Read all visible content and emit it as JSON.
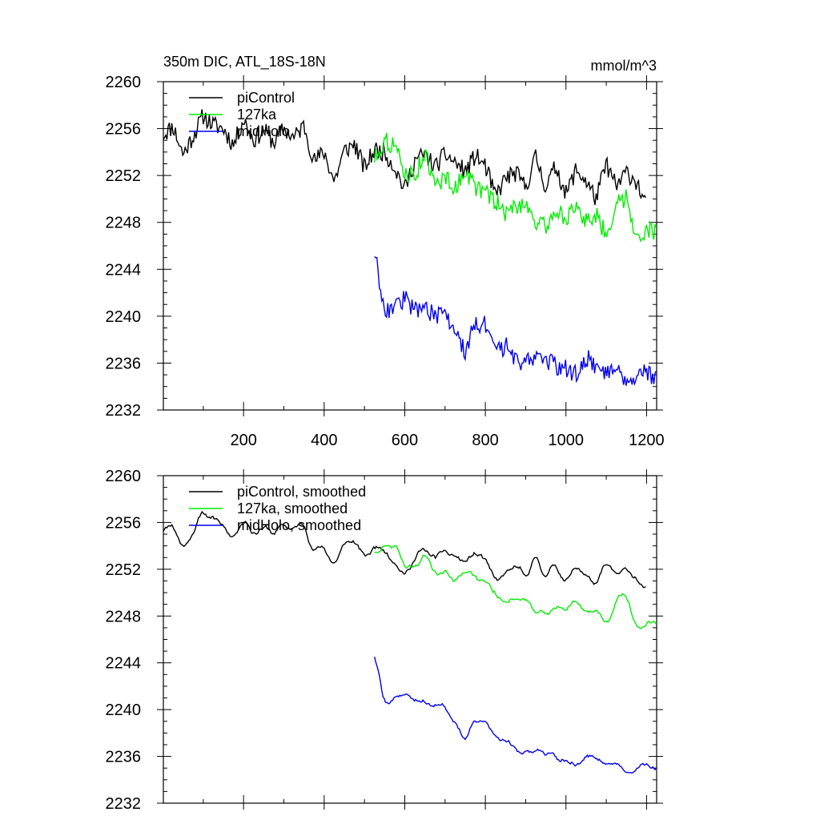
{
  "chart_data": [
    {
      "type": "line",
      "title": "350m DIC, ATL_18S-18N",
      "units": "mmol/m^3",
      "xlim": [
        1,
        1225
      ],
      "ylim": [
        2232,
        2260
      ],
      "x_ticks": [
        200,
        400,
        600,
        800,
        1000,
        1200
      ],
      "x_tick_labels": [
        "200",
        "400",
        "600",
        "800",
        "1000",
        "1200"
      ],
      "y_ticks": [
        2232,
        2236,
        2240,
        2244,
        2248,
        2252,
        2256,
        2260
      ],
      "y_tick_labels": [
        "2232",
        "2236",
        "2240",
        "2244",
        "2248",
        "2252",
        "2256",
        "2260"
      ],
      "legend_position": "top-left",
      "series": [
        {
          "name": "piControl",
          "color": "#000000",
          "x": [
            1,
            25,
            50,
            75,
            100,
            125,
            150,
            175,
            200,
            225,
            250,
            275,
            300,
            325,
            350,
            375,
            400,
            425,
            450,
            475,
            500,
            525,
            550,
            575,
            600,
            625,
            650,
            675,
            700,
            725,
            750,
            775,
            800,
            825,
            850,
            875,
            900,
            925,
            950,
            975,
            1000,
            1025,
            1050,
            1075,
            1100,
            1125,
            1150,
            1175,
            1200
          ],
          "y": [
            2255.5,
            2256.2,
            2253.8,
            2255.4,
            2257.1,
            2256.3,
            2256.0,
            2254.6,
            2256.8,
            2255.0,
            2255.9,
            2254.8,
            2256.0,
            2255.2,
            2256.3,
            2253.2,
            2254.0,
            2251.5,
            2254.1,
            2254.7,
            2252.6,
            2254.2,
            2254.0,
            2252.7,
            2250.8,
            2253.3,
            2253.8,
            2252.7,
            2253.8,
            2253.1,
            2252.3,
            2253.7,
            2252.8,
            2250.2,
            2251.8,
            2252.2,
            2251.0,
            2253.6,
            2251.0,
            2252.8,
            2250.4,
            2252.5,
            2251.5,
            2250.0,
            2253.0,
            2251.0,
            2252.3,
            2251.5,
            2249.2
          ]
        },
        {
          "name": "127ka",
          "color": "#00ee00",
          "x": [
            525,
            550,
            575,
            600,
            625,
            650,
            675,
            700,
            725,
            750,
            775,
            800,
            825,
            850,
            875,
            900,
            925,
            950,
            975,
            1000,
            1025,
            1050,
            1075,
            1100,
            1125,
            1150,
            1175,
            1200,
            1225
          ],
          "y": [
            2253.5,
            2255.0,
            2254.5,
            2252.2,
            2252.0,
            2254.0,
            2251.0,
            2252.0,
            2250.8,
            2252.5,
            2251.0,
            2250.5,
            2249.8,
            2248.8,
            2249.3,
            2249.8,
            2248.0,
            2247.6,
            2249.0,
            2248.5,
            2249.0,
            2248.2,
            2248.6,
            2247.0,
            2249.5,
            2250.2,
            2246.8,
            2247.3,
            2247.2
          ]
        },
        {
          "name": "midHolo",
          "color": "#0000ee",
          "x": [
            525,
            535,
            545,
            555,
            575,
            600,
            625,
            650,
            675,
            700,
            725,
            750,
            775,
            800,
            825,
            850,
            875,
            900,
            925,
            950,
            975,
            1000,
            1025,
            1050,
            1075,
            1100,
            1125,
            1150,
            1175,
            1200,
            1225
          ],
          "y": [
            2245.5,
            2243.5,
            2241.5,
            2240.5,
            2240.8,
            2241.5,
            2240.5,
            2241.0,
            2239.8,
            2240.3,
            2238.5,
            2237.0,
            2239.5,
            2239.2,
            2236.8,
            2237.5,
            2236.3,
            2236.0,
            2236.8,
            2236.4,
            2235.7,
            2235.6,
            2235.0,
            2236.6,
            2235.5,
            2235.3,
            2235.8,
            2234.6,
            2235.0,
            2235.2,
            2234.5
          ]
        }
      ]
    },
    {
      "type": "line",
      "title": "",
      "xlim": [
        1,
        1225
      ],
      "ylim": [
        2232,
        2260
      ],
      "x_ticks": [
        200,
        400,
        600,
        800,
        1000,
        1200
      ],
      "y_ticks": [
        2232,
        2236,
        2240,
        2244,
        2248,
        2252,
        2256,
        2260
      ],
      "y_tick_labels": [
        "2232",
        "2236",
        "2240",
        "2244",
        "2248",
        "2252",
        "2256",
        "2260"
      ],
      "legend_position": "top-left",
      "series": [
        {
          "name": "piControl, smoothed",
          "color": "#000000",
          "x": [
            1,
            25,
            50,
            75,
            100,
            125,
            150,
            175,
            200,
            225,
            250,
            275,
            300,
            325,
            350,
            375,
            400,
            425,
            450,
            475,
            500,
            525,
            550,
            575,
            600,
            625,
            650,
            675,
            700,
            725,
            750,
            775,
            800,
            825,
            850,
            875,
            900,
            925,
            950,
            975,
            1000,
            1025,
            1050,
            1075,
            1100,
            1125,
            1150,
            1175,
            1200
          ],
          "y": [
            2255.6,
            2256.0,
            2253.6,
            2255.3,
            2257.0,
            2256.2,
            2255.9,
            2254.6,
            2256.6,
            2255.0,
            2255.7,
            2254.9,
            2255.9,
            2255.3,
            2256.1,
            2253.4,
            2254.0,
            2252.2,
            2254.2,
            2254.5,
            2252.8,
            2254.0,
            2253.8,
            2252.8,
            2251.2,
            2253.1,
            2253.6,
            2252.9,
            2253.5,
            2253.1,
            2252.5,
            2253.4,
            2252.9,
            2250.6,
            2251.7,
            2252.1,
            2251.3,
            2253.2,
            2251.3,
            2252.6,
            2250.7,
            2252.3,
            2251.6,
            2250.4,
            2252.6,
            2251.3,
            2252.0,
            2251.4,
            2249.6
          ]
        },
        {
          "name": "127ka, smoothed",
          "color": "#00ee00",
          "x": [
            525,
            550,
            575,
            600,
            625,
            650,
            675,
            700,
            725,
            750,
            775,
            800,
            825,
            850,
            875,
            900,
            925,
            950,
            975,
            1000,
            1025,
            1050,
            1075,
            1100,
            1125,
            1150,
            1175,
            1200,
            1225
          ],
          "y": [
            2253.4,
            2254.3,
            2254.0,
            2252.3,
            2252.2,
            2253.6,
            2251.2,
            2252.0,
            2251.0,
            2252.2,
            2251.1,
            2250.7,
            2250.0,
            2249.0,
            2249.4,
            2249.8,
            2248.3,
            2248.0,
            2249.0,
            2248.7,
            2249.0,
            2248.4,
            2248.6,
            2247.4,
            2249.4,
            2250.0,
            2247.1,
            2247.4,
            2247.3
          ]
        },
        {
          "name": "midHolo, smoothed",
          "color": "#0000ee",
          "x": [
            525,
            535,
            545,
            555,
            575,
            600,
            625,
            650,
            675,
            700,
            725,
            750,
            775,
            800,
            825,
            850,
            875,
            900,
            925,
            950,
            975,
            1000,
            1025,
            1050,
            1075,
            1100,
            1125,
            1150,
            1175,
            1200,
            1225
          ],
          "y": [
            2245.2,
            2243.4,
            2241.4,
            2240.6,
            2240.8,
            2241.3,
            2240.6,
            2240.9,
            2240.0,
            2240.2,
            2238.7,
            2237.3,
            2239.4,
            2239.0,
            2237.0,
            2237.5,
            2236.5,
            2236.2,
            2236.7,
            2236.3,
            2235.8,
            2235.7,
            2235.2,
            2236.4,
            2235.6,
            2235.4,
            2235.7,
            2234.8,
            2235.1,
            2235.2,
            2234.6
          ]
        }
      ]
    }
  ]
}
